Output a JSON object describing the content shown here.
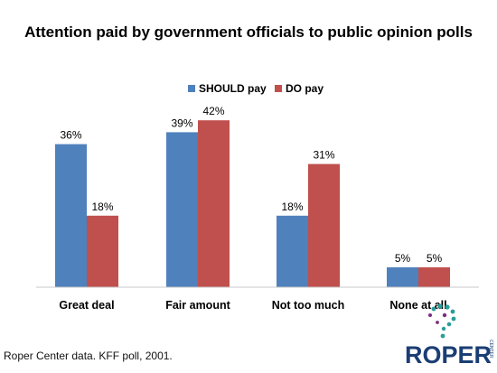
{
  "chart_data": {
    "type": "bar",
    "title": "Attention paid by government officials to public opinion polls",
    "categories": [
      "Great deal",
      "Fair amount",
      "Not too much",
      "None at all"
    ],
    "series": [
      {
        "name": "SHOULD pay",
        "values": [
          36,
          39,
          18,
          5
        ],
        "labels": [
          "36%",
          "39%",
          "18%",
          "5%"
        ],
        "color": "#4f81bd"
      },
      {
        "name": "DO pay",
        "values": [
          18,
          42,
          31,
          5
        ],
        "labels": [
          "18%",
          "42%",
          "31%",
          "5%"
        ],
        "color": "#c0504d"
      }
    ],
    "ylim": [
      0,
      50
    ],
    "grid": false,
    "legend_position": "top-center",
    "xlabel": "",
    "ylabel": ""
  },
  "footer": {
    "source": "Roper Center data. KFF poll, 2001.",
    "logo_text": "ROPER",
    "logo_side_text": "CENTER"
  }
}
